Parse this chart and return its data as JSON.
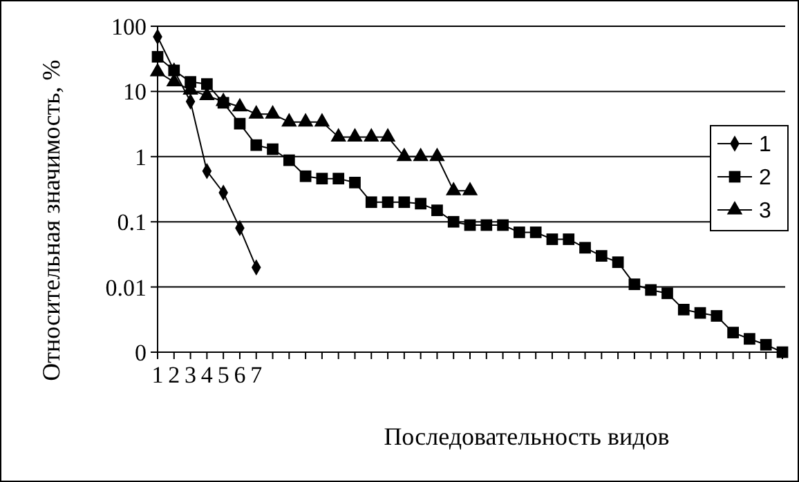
{
  "chart_data": {
    "type": "line",
    "xlabel": "Последовательность видов",
    "ylabel": "Относительная значимость, %",
    "categories": [
      "1",
      "2",
      "3",
      "4",
      "5",
      "6",
      "7",
      null,
      null,
      null,
      null,
      null,
      null,
      null,
      null,
      null,
      null,
      null,
      null,
      null,
      null,
      null,
      null,
      null,
      null,
      null,
      null,
      null,
      null,
      null,
      null,
      null,
      null,
      null,
      null,
      null,
      null,
      null,
      null
    ],
    "series": [
      {
        "name": "1",
        "color": "#000000",
        "marker": "diamond",
        "values": [
          69,
          21,
          7,
          0.6,
          0.28,
          0.08,
          0.02,
          null,
          null,
          null,
          null,
          null,
          null,
          null,
          null,
          null,
          null,
          null,
          null,
          null,
          null,
          null,
          null,
          null,
          null,
          null,
          null,
          null,
          null,
          null,
          null,
          null,
          null,
          null,
          null,
          null,
          null,
          null,
          null
        ]
      },
      {
        "name": "2",
        "color": "#000000",
        "marker": "square",
        "values": [
          34,
          21,
          14,
          13,
          6.7,
          3.2,
          1.5,
          1.3,
          0.88,
          0.5,
          0.46,
          0.46,
          0.4,
          0.2,
          0.2,
          0.2,
          0.19,
          0.15,
          0.1,
          0.089,
          0.089,
          0.089,
          0.069,
          0.069,
          0.054,
          0.054,
          0.04,
          0.03,
          0.024,
          0.011,
          0.009,
          0.008,
          0.0045,
          0.004,
          0.0036,
          0.002,
          0.0016,
          0.0013,
          0.001
        ]
      },
      {
        "name": "3",
        "color": "#000000",
        "marker": "triangle",
        "values": [
          20,
          14,
          10.5,
          8.6,
          7,
          5.8,
          4.5,
          4.5,
          3.4,
          3.4,
          3.4,
          2,
          2,
          2,
          2,
          1,
          1,
          1,
          0.3,
          0.3,
          null,
          null,
          null,
          null,
          null,
          null,
          null,
          null,
          null,
          null,
          null,
          null,
          null,
          null,
          null,
          null,
          null,
          null,
          null
        ]
      }
    ],
    "log": true,
    "ylim": [
      0.001,
      100
    ],
    "yticks": [
      100,
      10,
      1,
      0.1,
      0.01,
      {
        "value": 0.001,
        "label": "0"
      }
    ],
    "grid": "y",
    "legend": "right",
    "line_style": "solid"
  }
}
